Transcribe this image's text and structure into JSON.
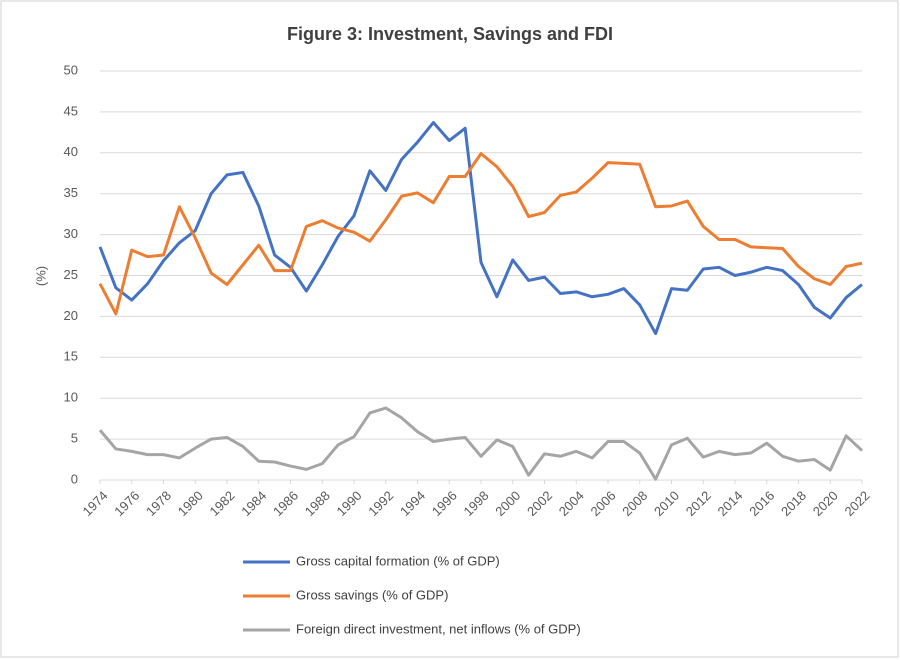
{
  "chart_data": {
    "type": "line",
    "title": "Figure 3: Investment, Savings and FDI",
    "y_label": "(%)",
    "x": [
      1974,
      1975,
      1976,
      1977,
      1978,
      1979,
      1980,
      1981,
      1982,
      1983,
      1984,
      1985,
      1986,
      1987,
      1988,
      1989,
      1990,
      1991,
      1992,
      1993,
      1994,
      1995,
      1996,
      1997,
      1998,
      1999,
      2000,
      2001,
      2002,
      2003,
      2004,
      2005,
      2006,
      2007,
      2008,
      2009,
      2010,
      2011,
      2012,
      2013,
      2014,
      2015,
      2016,
      2017,
      2018,
      2019,
      2020,
      2021,
      2022
    ],
    "xlim": [
      1974,
      2022
    ],
    "xticks": [
      1974,
      1976,
      1978,
      1980,
      1982,
      1984,
      1986,
      1988,
      1990,
      1992,
      1994,
      1996,
      1998,
      2000,
      2002,
      2004,
      2006,
      2008,
      2010,
      2012,
      2014,
      2016,
      2018,
      2020,
      2022
    ],
    "ylim": [
      0,
      50
    ],
    "yticks": [
      0,
      5,
      10,
      15,
      20,
      25,
      30,
      35,
      40,
      45,
      50
    ],
    "grid": true,
    "legend": "bottom",
    "series": [
      {
        "name": "Gross capital formation (% of GDP)",
        "color": "#4472c4",
        "values": [
          28.5,
          23.5,
          22,
          24,
          26.8,
          29,
          30.5,
          35,
          37.3,
          37.6,
          33.5,
          27.5,
          26,
          23.1,
          26.3,
          29.8,
          32.3,
          37.8,
          35.4,
          39.2,
          41.3,
          43.7,
          41.5,
          43,
          26.6,
          22.4,
          26.9,
          24.4,
          24.8,
          22.8,
          23,
          22.4,
          22.7,
          23.4,
          21.4,
          17.9,
          23.4,
          23.2,
          25.8,
          26,
          25,
          25.4,
          26,
          25.6,
          23.9,
          21.1,
          19.8,
          22.3,
          23.9
        ]
      },
      {
        "name": "Gross savings (% of GDP)",
        "color": "#ed7d31",
        "values": [
          24,
          20.3,
          28.1,
          27.3,
          27.5,
          33.4,
          29.6,
          25.3,
          23.9,
          26.3,
          28.7,
          25.6,
          25.6,
          31,
          31.7,
          30.8,
          30.3,
          29.2,
          31.8,
          34.7,
          35.1,
          33.9,
          37.1,
          37.1,
          39.9,
          38.3,
          35.9,
          32.2,
          32.7,
          34.8,
          35.2,
          36.9,
          38.8,
          38.7,
          38.6,
          33.4,
          33.5,
          34.1,
          31,
          29.4,
          29.4,
          28.5,
          28.4,
          28.3,
          26.1,
          24.6,
          23.9,
          26.1,
          26.5
        ]
      },
      {
        "name": "Foreign direct investment, net inflows (% of GDP)",
        "color": "#a5a5a5",
        "values": [
          6.1,
          3.8,
          3.5,
          3.1,
          3.1,
          2.7,
          3.9,
          5,
          5.2,
          4.1,
          2.3,
          2.2,
          1.7,
          1.3,
          2,
          4.3,
          5.3,
          8.2,
          8.8,
          7.6,
          5.9,
          4.7,
          5,
          5.2,
          2.9,
          4.9,
          4.1,
          0.6,
          3.2,
          2.9,
          3.5,
          2.7,
          4.7,
          4.7,
          3.3,
          0.1,
          4.3,
          5.1,
          2.8,
          3.5,
          3.1,
          3.3,
          4.5,
          2.9,
          2.3,
          2.5,
          1.2,
          5.4,
          3.6
        ]
      }
    ]
  }
}
